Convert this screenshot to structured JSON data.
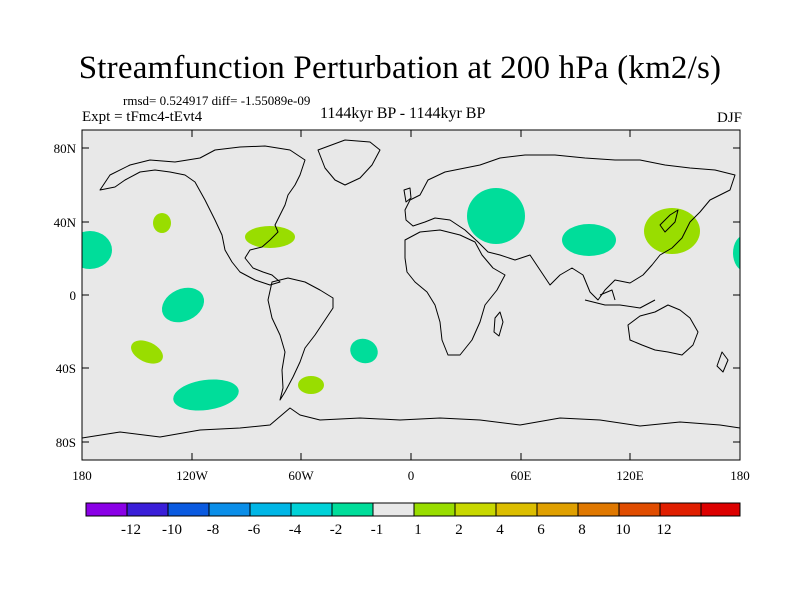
{
  "title": "Streamfunction Perturbation at 200 hPa (km2/s)",
  "stats_line": "rmsd= 0.524917 diff= -1.55089e-09",
  "experiment": "Expt = tFmc4-tEvt4",
  "period": "1144kyr BP - 1144kyr BP",
  "season": "DJF",
  "map": {
    "background": "#e8e8e8",
    "lat_labels": [
      "80N",
      "40N",
      "0",
      "40S",
      "80S"
    ],
    "lon_labels": [
      "180",
      "120W",
      "60W",
      "0",
      "60E",
      "120E",
      "180"
    ]
  },
  "anomalies": [
    {
      "name": "north-pacific-east",
      "color": "#00dd9a",
      "level": "-2"
    },
    {
      "name": "north-pacific-west",
      "color": "#00dd9a",
      "level": "-2"
    },
    {
      "name": "central-pacific-north",
      "color": "#99dd00",
      "level": "2"
    },
    {
      "name": "eastern-us",
      "color": "#99dd00",
      "level": "2"
    },
    {
      "name": "tropical-pacific",
      "color": "#00dd9a",
      "level": "-2"
    },
    {
      "name": "south-pacific",
      "color": "#99dd00",
      "level": "2"
    },
    {
      "name": "southern-ocean-pacific",
      "color": "#00dd9a",
      "level": "-2"
    },
    {
      "name": "south-america-east",
      "color": "#99dd00",
      "level": "2"
    },
    {
      "name": "south-atlantic",
      "color": "#00dd9a",
      "level": "-2"
    },
    {
      "name": "central-asia",
      "color": "#00dd9a",
      "level": "-2"
    },
    {
      "name": "tibet-china",
      "color": "#00dd9a",
      "level": "-2"
    },
    {
      "name": "japan",
      "color": "#99dd00",
      "level": "2"
    }
  ],
  "colorbar": {
    "colors": [
      "#8a00e6",
      "#3a1ed8",
      "#0a5ae0",
      "#0a8ee8",
      "#00b6e6",
      "#00d2d8",
      "#00dd9a",
      "#e8e8e8",
      "#99dd00",
      "#c8d800",
      "#dcbe00",
      "#e0a000",
      "#e07800",
      "#e04c00",
      "#e01e00",
      "#dc0000"
    ],
    "labels": [
      "-12",
      "-10",
      "-8",
      "-6",
      "-4",
      "-2",
      "-1",
      "1",
      "2",
      "4",
      "6",
      "8",
      "10",
      "12"
    ]
  }
}
